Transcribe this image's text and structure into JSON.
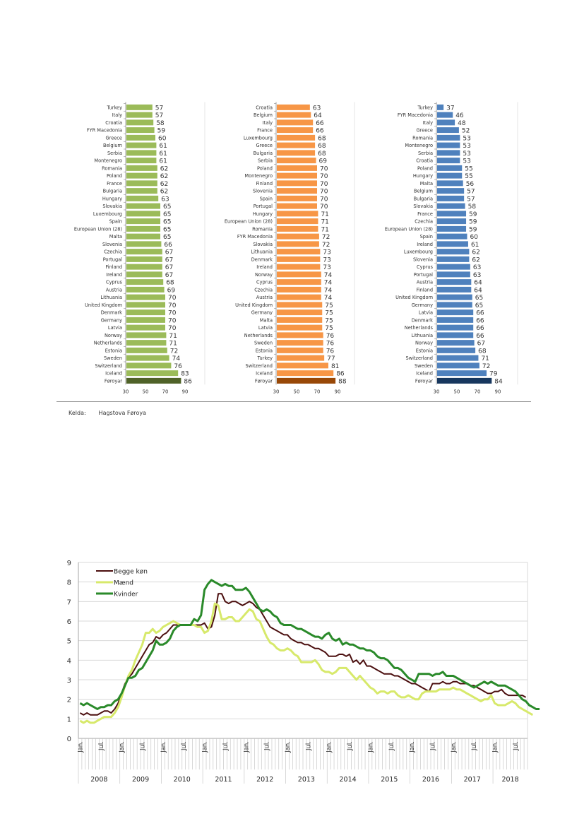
{
  "source": {
    "label": "Kelda:",
    "value": "Hagstova Føroya"
  },
  "chart_data": [
    {
      "type": "bar",
      "orientation": "horizontal",
      "title": "",
      "color": "#9bbb59",
      "highlight_color": "#4f6228",
      "highlight_category": "Føroyar",
      "xlim": [
        30,
        90
      ],
      "xticks": [
        30,
        50,
        70,
        90
      ],
      "categories": [
        "Turkey",
        "Italy",
        "Croatia",
        "FYR Macedonia",
        "Greece",
        "Belgium",
        "Serbia",
        "Montenegro",
        "Romania",
        "Poland",
        "France",
        "Bulgaria",
        "Hungary",
        "Slovakia",
        "Luxembourg",
        "Spain",
        "European Union (28)",
        "Malta",
        "Slovenia",
        "Czechia",
        "Portugal",
        "Finland",
        "Ireland",
        "Cyprus",
        "Austria",
        "Lithuania",
        "United Kingdom",
        "Denmark",
        "Germany",
        "Latvia",
        "Norway",
        "Netherlands",
        "Estonia",
        "Sweden",
        "Switzerland",
        "Iceland",
        "Føroyar"
      ],
      "values": [
        57,
        57,
        58,
        59,
        60,
        61,
        61,
        61,
        62,
        62,
        62,
        62,
        63,
        65,
        65,
        65,
        65,
        65,
        66,
        67,
        67,
        67,
        67,
        68,
        69,
        70,
        70,
        70,
        70,
        70,
        71,
        71,
        72,
        74,
        76,
        83,
        86
      ]
    },
    {
      "type": "bar",
      "orientation": "horizontal",
      "title": "",
      "color": "#f79646",
      "highlight_color": "#984807",
      "highlight_category": "Føroyar",
      "xlim": [
        30,
        90
      ],
      "xticks": [
        30,
        50,
        70,
        90
      ],
      "categories": [
        "Croatia",
        "Belgium",
        "Italy",
        "France",
        "Luxembourg",
        "Greece",
        "Bulgaria",
        "Serbia",
        "Poland",
        "Montenegro",
        "Finland",
        "Slovenia",
        "Spain",
        "Portugal",
        "Hungary",
        "European Union (28)",
        "Romania",
        "FYR Macedonia",
        "Slovakia",
        "Lithuania",
        "Denmark",
        "Ireland",
        "Norway",
        "Cyprus",
        "Czechia",
        "Austria",
        "United Kingdom",
        "Germany",
        "Malta",
        "Latvia",
        "Netherlands",
        "Sweden",
        "Estonia",
        "Turkey",
        "Switzerland",
        "Iceland",
        "Føroyar"
      ],
      "values": [
        63,
        64,
        66,
        66,
        68,
        68,
        68,
        69,
        70,
        70,
        70,
        70,
        70,
        70,
        71,
        71,
        71,
        72,
        72,
        73,
        73,
        73,
        74,
        74,
        74,
        74,
        75,
        75,
        75,
        75,
        76,
        76,
        76,
        77,
        81,
        86,
        88
      ]
    },
    {
      "type": "bar",
      "orientation": "horizontal",
      "title": "",
      "color": "#4f81bd",
      "highlight_color": "#17375e",
      "highlight_category": "Føroyar",
      "xlim": [
        30,
        90
      ],
      "xticks": [
        30,
        50,
        70,
        90
      ],
      "categories": [
        "Turkey",
        "FYR Macedonia",
        "Italy",
        "Greece",
        "Romania",
        "Montenegro",
        "Serbia",
        "Croatia",
        "Poland",
        "Hungary",
        "Malta",
        "Belgium",
        "Bulgaria",
        "Slovakia",
        "France",
        "Czechia",
        "European Union (28)",
        "Spain",
        "Ireland",
        "Luxembourg",
        "Slovenia",
        "Cyprus",
        "Portugal",
        "Austria",
        "Finland",
        "United Kingdom",
        "Germany",
        "Latvia",
        "Denmark",
        "Netherlands",
        "Lithuania",
        "Norway",
        "Estonia",
        "Switzerland",
        "Sweden",
        "Iceland",
        "Føroyar"
      ],
      "values": [
        37,
        46,
        48,
        52,
        53,
        53,
        53,
        53,
        55,
        55,
        56,
        57,
        57,
        58,
        59,
        59,
        59,
        60,
        61,
        62,
        62,
        63,
        63,
        64,
        64,
        65,
        65,
        66,
        66,
        66,
        66,
        67,
        68,
        71,
        72,
        79,
        84
      ]
    },
    {
      "type": "line",
      "title": "",
      "xlabel": "",
      "ylabel": "",
      "ylim": [
        0,
        9
      ],
      "yticks": [
        0,
        1,
        2,
        3,
        4,
        5,
        6,
        7,
        8,
        9
      ],
      "grid": true,
      "legend": "top-left",
      "start": "2008-01",
      "n_months": 130,
      "month_labels": {
        "jan": "Jan.",
        "jul": "Jul."
      },
      "years": [
        "2008",
        "2009",
        "2010",
        "2011",
        "2012",
        "2013",
        "2014",
        "2015",
        "2016",
        "2017",
        "2018"
      ],
      "series": [
        {
          "name": "Begge køn",
          "color": "#4b0f0f",
          "values": [
            1.3,
            1.2,
            1.3,
            1.2,
            1.2,
            1.2,
            1.3,
            1.4,
            1.4,
            1.3,
            1.5,
            1.8,
            2.3,
            2.8,
            3.1,
            3.3,
            3.6,
            3.9,
            4.2,
            4.5,
            4.8,
            4.9,
            5.2,
            5.1,
            5.3,
            5.4,
            5.6,
            5.8,
            5.8,
            5.8,
            5.8,
            5.8,
            5.8,
            5.8,
            5.8,
            5.8,
            5.9,
            5.6,
            5.7,
            6.3,
            7.4,
            7.4,
            7.0,
            6.9,
            7.0,
            7.0,
            6.9,
            6.8,
            6.9,
            7.0,
            6.9,
            6.7,
            6.6,
            6.3,
            6.0,
            5.7,
            5.6,
            5.5,
            5.4,
            5.3,
            5.3,
            5.1,
            5.0,
            4.9,
            4.9,
            4.8,
            4.8,
            4.7,
            4.6,
            4.6,
            4.5,
            4.4,
            4.2,
            4.2,
            4.2,
            4.3,
            4.3,
            4.2,
            4.3,
            3.9,
            4.0,
            3.8,
            4.0,
            3.7,
            3.7,
            3.6,
            3.5,
            3.4,
            3.3,
            3.3,
            3.3,
            3.2,
            3.2,
            3.1,
            3.0,
            2.9,
            2.8,
            2.8,
            2.7,
            2.6,
            2.5,
            2.4,
            2.8,
            2.8,
            2.8,
            2.9,
            2.8,
            2.8,
            2.9,
            2.9,
            2.8,
            2.8,
            2.8,
            2.7,
            2.7,
            2.6,
            2.5,
            2.4,
            2.3,
            2.3,
            2.4,
            2.4,
            2.5,
            2.3,
            2.2,
            2.2,
            2.2,
            2.2,
            2.2,
            2.1
          ]
        },
        {
          "name": "Mænd",
          "color": "#d7e96b",
          "values": [
            0.9,
            0.8,
            0.9,
            0.8,
            0.8,
            0.9,
            1.0,
            1.1,
            1.1,
            1.1,
            1.3,
            1.6,
            2.1,
            2.7,
            3.2,
            3.5,
            4.0,
            4.4,
            4.8,
            5.4,
            5.4,
            5.6,
            5.4,
            5.5,
            5.7,
            5.8,
            5.9,
            6.0,
            5.9,
            5.8,
            5.8,
            5.8,
            5.8,
            5.8,
            5.7,
            5.7,
            5.4,
            5.5,
            6.0,
            6.9,
            6.8,
            6.1,
            6.1,
            6.2,
            6.2,
            6.0,
            6.0,
            6.2,
            6.4,
            6.6,
            6.5,
            6.1,
            6.0,
            5.6,
            5.2,
            4.9,
            4.8,
            4.6,
            4.5,
            4.5,
            4.6,
            4.5,
            4.3,
            4.2,
            3.9,
            3.9,
            3.9,
            3.9,
            4.0,
            3.8,
            3.5,
            3.4,
            3.4,
            3.3,
            3.4,
            3.6,
            3.6,
            3.6,
            3.4,
            3.2,
            3.0,
            3.2,
            3.0,
            2.8,
            2.6,
            2.5,
            2.3,
            2.4,
            2.4,
            2.3,
            2.4,
            2.4,
            2.2,
            2.1,
            2.1,
            2.2,
            2.1,
            2.0,
            2.0,
            2.3,
            2.4,
            2.4,
            2.4,
            2.4,
            2.5,
            2.5,
            2.5,
            2.5,
            2.6,
            2.5,
            2.5,
            2.4,
            2.3,
            2.2,
            2.1,
            2.0,
            1.9,
            2.0,
            2.0,
            2.2,
            1.8,
            1.7,
            1.7,
            1.7,
            1.8,
            1.9,
            1.8,
            1.6,
            1.5,
            1.4,
            1.3,
            1.2
          ]
        },
        {
          "name": "Kvinder",
          "color": "#2a8a2a",
          "values": [
            1.8,
            1.7,
            1.8,
            1.7,
            1.6,
            1.5,
            1.6,
            1.6,
            1.7,
            1.7,
            1.9,
            2.0,
            2.3,
            2.7,
            3.1,
            3.1,
            3.2,
            3.5,
            3.6,
            3.9,
            4.2,
            4.5,
            5.0,
            4.8,
            4.8,
            4.9,
            5.1,
            5.5,
            5.7,
            5.8,
            5.8,
            5.8,
            5.8,
            6.1,
            6.0,
            6.3,
            7.6,
            7.9,
            8.1,
            8.0,
            7.9,
            7.8,
            7.9,
            7.8,
            7.8,
            7.6,
            7.6,
            7.6,
            7.7,
            7.5,
            7.2,
            6.9,
            6.6,
            6.5,
            6.6,
            6.5,
            6.3,
            6.2,
            5.9,
            5.8,
            5.8,
            5.8,
            5.7,
            5.6,
            5.6,
            5.5,
            5.4,
            5.3,
            5.2,
            5.2,
            5.1,
            5.3,
            5.4,
            5.1,
            5.0,
            5.1,
            4.8,
            4.9,
            4.8,
            4.8,
            4.7,
            4.6,
            4.6,
            4.5,
            4.5,
            4.4,
            4.2,
            4.1,
            4.1,
            4.0,
            3.8,
            3.6,
            3.6,
            3.5,
            3.3,
            3.1,
            3.0,
            2.9,
            3.3,
            3.3,
            3.3,
            3.3,
            3.2,
            3.3,
            3.3,
            3.4,
            3.2,
            3.2,
            3.2,
            3.1,
            3.0,
            2.9,
            2.8,
            2.7,
            2.6,
            2.7,
            2.8,
            2.9,
            2.8,
            2.9,
            2.8,
            2.7,
            2.7,
            2.7,
            2.6,
            2.5,
            2.4,
            2.2,
            2.0,
            1.9,
            1.7,
            1.6,
            1.5,
            1.5
          ]
        }
      ]
    }
  ]
}
